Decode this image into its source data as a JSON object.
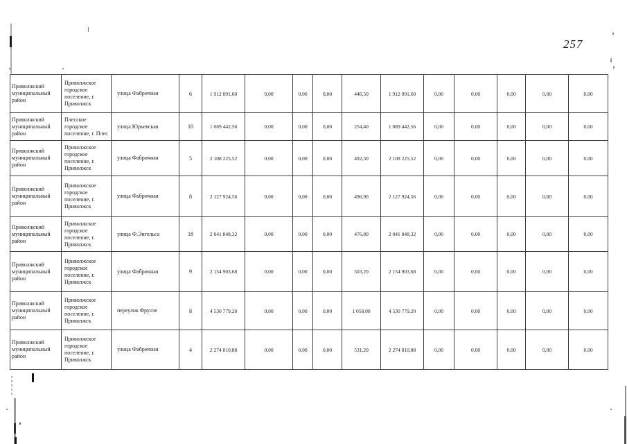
{
  "page_number": "257",
  "table": {
    "columns": [
      "district",
      "settlement",
      "street",
      "house_number",
      "amount_1",
      "value_2",
      "value_3",
      "value_4",
      "area",
      "amount_2",
      "value_7",
      "value_8",
      "value_9",
      "value_10",
      "value_11"
    ],
    "rows": [
      {
        "district": "Приволжский муниципальный район",
        "settlement": "Приволжское городское поселение, г. Приволжск",
        "street": "улица Фабричная",
        "house": "6",
        "values": [
          "1 912 091,60",
          "0,00",
          "0,00",
          "0,00",
          "446,50",
          "1 912 091,60",
          "0,00",
          "0,00",
          "0,00",
          "0,00",
          "0,00"
        ]
      },
      {
        "district": "Приволжский муниципальный район",
        "settlement": "Плесское городское поселение, г. Плес",
        "street": "улица Юрьевская",
        "house": "10",
        "values": [
          "1 089 442,56",
          "0,00",
          "0,00",
          "0,00",
          "254,40",
          "1 089 442,56",
          "0,00",
          "0,00",
          "0,00",
          "0,00",
          "0,00"
        ]
      },
      {
        "district": "Приволжский муниципальный район",
        "settlement": "Приволжское городское поселение, г. Приволжск",
        "street": "улица Фабричная",
        "house": "5",
        "values": [
          "2 108 225,52",
          "0,00",
          "0,00",
          "0,00",
          "492,30",
          "2 108 225,52",
          "0,00",
          "0,00",
          "0,00",
          "0,00",
          "0,00"
        ]
      },
      {
        "district": "Приволжский муниципальный район",
        "settlement": "Приволжское городское поселение, г. Приволжск",
        "street": "улица Фабричная",
        "house": "8",
        "values": [
          "2 127 924,56",
          "0,00",
          "0,00",
          "0,00",
          "496,90",
          "2 127 924,56",
          "0,00",
          "0,00",
          "0,00",
          "0,00",
          "0,00"
        ]
      },
      {
        "district": "Приволжский муниципальный район",
        "settlement": "Приволжское городское поселение, г. Приволжск",
        "street": "улица Ф.Энгельса",
        "house": "18",
        "values": [
          "2 041 848,32",
          "0,00",
          "0,00",
          "0,00",
          "476,80",
          "2 041 848,32",
          "0,00",
          "0,00",
          "0,00",
          "0,00",
          "0,00"
        ]
      },
      {
        "district": "Приволжский муниципальный район",
        "settlement": "Приволжское городское поселение, г. Приволжск",
        "street": "улица Фабричная",
        "house": "9",
        "values": [
          "2 154 903,68",
          "0,00",
          "0,00",
          "0,00",
          "503,20",
          "2 154 903,68",
          "0,00",
          "0,00",
          "0,00",
          "0,00",
          "0,00"
        ]
      },
      {
        "district": "Приволжский муниципальный район",
        "settlement": "Приволжское городское поселение, г. Приволжск",
        "street": "переулок Фрунзе",
        "house": "8",
        "values": [
          "4 530 779,20",
          "0,00",
          "0,00",
          "0,00",
          "1 058,00",
          "4 530 779,20",
          "0,00",
          "0,00",
          "0,00",
          "0,00",
          "0,00"
        ]
      },
      {
        "district": "Приволжский муниципальный район",
        "settlement": "Приволжское городское поселение, г. Приволжск",
        "street": "улица Фабричная",
        "house": "4",
        "values": [
          "2 274 810,88",
          "0,00",
          "0,00",
          "0,00",
          "531,20",
          "2 274 810,88",
          "0,00",
          "0,00",
          "0,00",
          "0,00",
          "0,00"
        ]
      }
    ]
  }
}
